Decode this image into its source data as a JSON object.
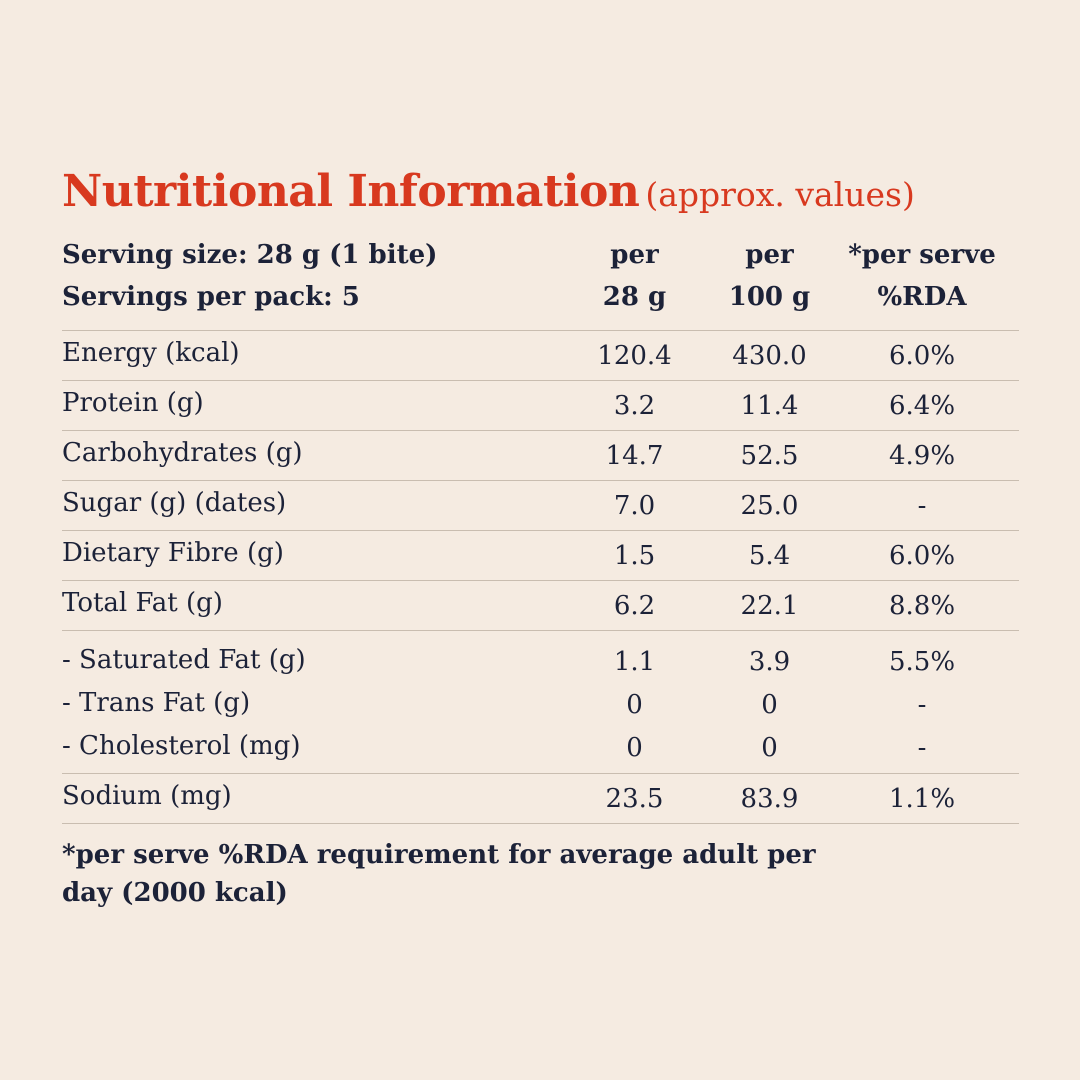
{
  "title": "Nutritional Information",
  "subtitle": "(approx. values)",
  "serving": {
    "size": "Serving size: 28 g (1 bite)",
    "per_pack": "Servings per pack: 5"
  },
  "columns": [
    {
      "line1": "per",
      "line2": "28 g"
    },
    {
      "line1": "per",
      "line2": "100 g"
    },
    {
      "line1": "*per serve",
      "line2": "%RDA"
    }
  ],
  "rows": [
    {
      "label": "Energy (kcal)",
      "per28": "120.4",
      "per100": "430.0",
      "rda": "6.0%"
    },
    {
      "label": "Protein (g)",
      "per28": "3.2",
      "per100": "11.4",
      "rda": "6.4%"
    },
    {
      "label": "Carbohydrates (g)",
      "per28": "14.7",
      "per100": "52.5",
      "rda": "4.9%"
    },
    {
      "label": "Sugar (g) (dates)",
      "per28": "7.0",
      "per100": "25.0",
      "rda": "-"
    },
    {
      "label": "Dietary Fibre (g)",
      "per28": "1.5",
      "per100": "5.4",
      "rda": "6.0%"
    },
    {
      "label": "Total Fat (g)",
      "per28": "6.2",
      "per100": "22.1",
      "rda": "8.8%"
    }
  ],
  "fat_breakdown": [
    {
      "label": "- Saturated Fat (g)",
      "per28": "1.1",
      "per100": "3.9",
      "rda": "5.5%"
    },
    {
      "label": "- Trans Fat (g)",
      "per28": "0",
      "per100": "0",
      "rda": "-"
    },
    {
      "label": "- Cholesterol (mg)",
      "per28": "0",
      "per100": "0",
      "rda": "-"
    }
  ],
  "sodium": {
    "label": "Sodium (mg)",
    "per28": "23.5",
    "per100": "83.9",
    "rda": "1.1%"
  },
  "footnote": "*per serve %RDA requirement for average adult per day (2000 kcal)"
}
